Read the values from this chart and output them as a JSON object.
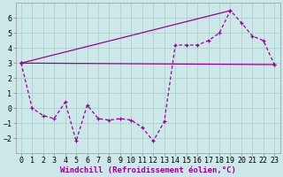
{
  "background_color": "#cce8e8",
  "line_color": "#990099",
  "grid_color": "#aacccc",
  "xlabel": "Windchill (Refroidissement éolien,°C)",
  "xlabel_fontsize": 6.5,
  "tick_fontsize": 6.0,
  "ylim": [
    -3,
    7
  ],
  "xlim": [
    -0.5,
    23.5
  ],
  "yticks": [
    -2,
    -1,
    0,
    1,
    2,
    3,
    4,
    5,
    6
  ],
  "xticks": [
    0,
    1,
    2,
    3,
    4,
    5,
    6,
    7,
    8,
    9,
    10,
    11,
    12,
    13,
    14,
    15,
    16,
    17,
    18,
    19,
    20,
    21,
    22,
    23
  ],
  "series1_x": [
    0,
    1,
    2,
    3,
    4,
    5,
    6,
    7,
    8,
    9,
    10,
    11,
    12,
    13,
    14,
    15,
    16,
    17,
    18,
    19,
    20,
    21,
    22,
    23
  ],
  "series1_y": [
    3.0,
    0.0,
    -0.5,
    -0.7,
    0.4,
    -2.2,
    0.2,
    -0.7,
    -0.8,
    -0.7,
    -0.8,
    -1.3,
    -2.2,
    -0.9,
    4.2,
    4.2,
    4.2,
    4.5,
    5.0,
    6.5,
    5.7,
    4.8,
    4.5,
    2.9
  ],
  "series2_x": [
    0,
    23
  ],
  "series2_y": [
    3.0,
    2.9
  ],
  "series3_x": [
    0,
    19
  ],
  "series3_y": [
    3.0,
    6.5
  ]
}
